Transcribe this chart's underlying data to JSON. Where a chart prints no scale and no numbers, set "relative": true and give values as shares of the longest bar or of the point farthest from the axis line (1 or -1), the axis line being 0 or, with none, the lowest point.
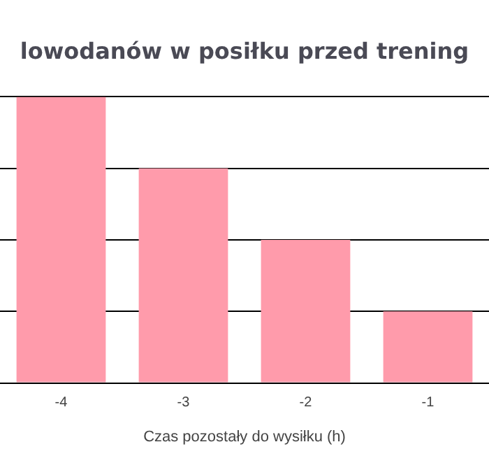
{
  "chart_data": {
    "type": "bar",
    "title": "lowodanów w posiłku przed trening",
    "xlabel": "Czas pozostały do wysiłku (h)",
    "categories": [
      "-4",
      "-3",
      "-2",
      "-1"
    ],
    "values": [
      1,
      0.75,
      0.5,
      0.25
    ],
    "color": "#ff9bab",
    "relative": true,
    "grid": "y"
  }
}
